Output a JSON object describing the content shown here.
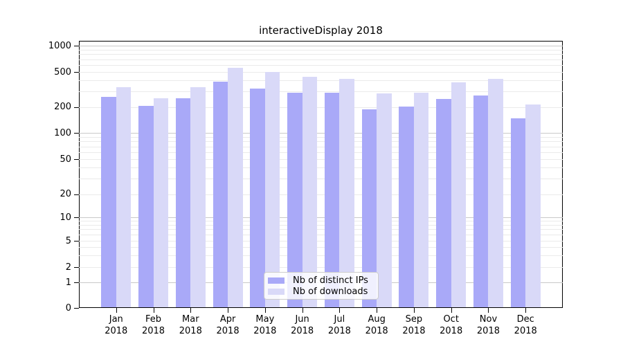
{
  "chart_data": {
    "type": "bar",
    "title": "interactiveDisplay 2018",
    "categories": [
      "Jan 2018",
      "Feb 2018",
      "Mar 2018",
      "Apr 2018",
      "May 2018",
      "Jun 2018",
      "Jul 2018",
      "Aug 2018",
      "Sep 2018",
      "Oct 2018",
      "Nov 2018",
      "Dec 2018"
    ],
    "series": [
      {
        "name": "Nb of distinct IPs",
        "color": "#a9a9f8",
        "values": [
          260,
          205,
          250,
          385,
          325,
          290,
          290,
          187,
          203,
          245,
          270,
          148
        ]
      },
      {
        "name": "Nb of downloads",
        "color": "#d9d9f8",
        "values": [
          335,
          250,
          335,
          560,
          500,
          440,
          415,
          285,
          290,
          380,
          420,
          215
        ]
      }
    ],
    "xlabel": "",
    "ylabel": "",
    "yscale": "symlog",
    "y_ticks": [
      0,
      1,
      2,
      5,
      10,
      20,
      50,
      100,
      200,
      500,
      1000
    ],
    "ylim": [
      0,
      1100
    ],
    "grid": "horizontal major and minor",
    "legend": {
      "entries": [
        "Nb of distinct IPs",
        "Nb of downloads"
      ],
      "position": "inside lower-center"
    }
  },
  "colors": {
    "bar_distinct_ips": "#a9a9f8",
    "bar_downloads": "#d9d9f8",
    "grid_major": "#c9c9c9",
    "grid_minor": "#eaeaea",
    "axis": "#000000",
    "legend_border": "#cccccc",
    "title_text": "#000000"
  }
}
